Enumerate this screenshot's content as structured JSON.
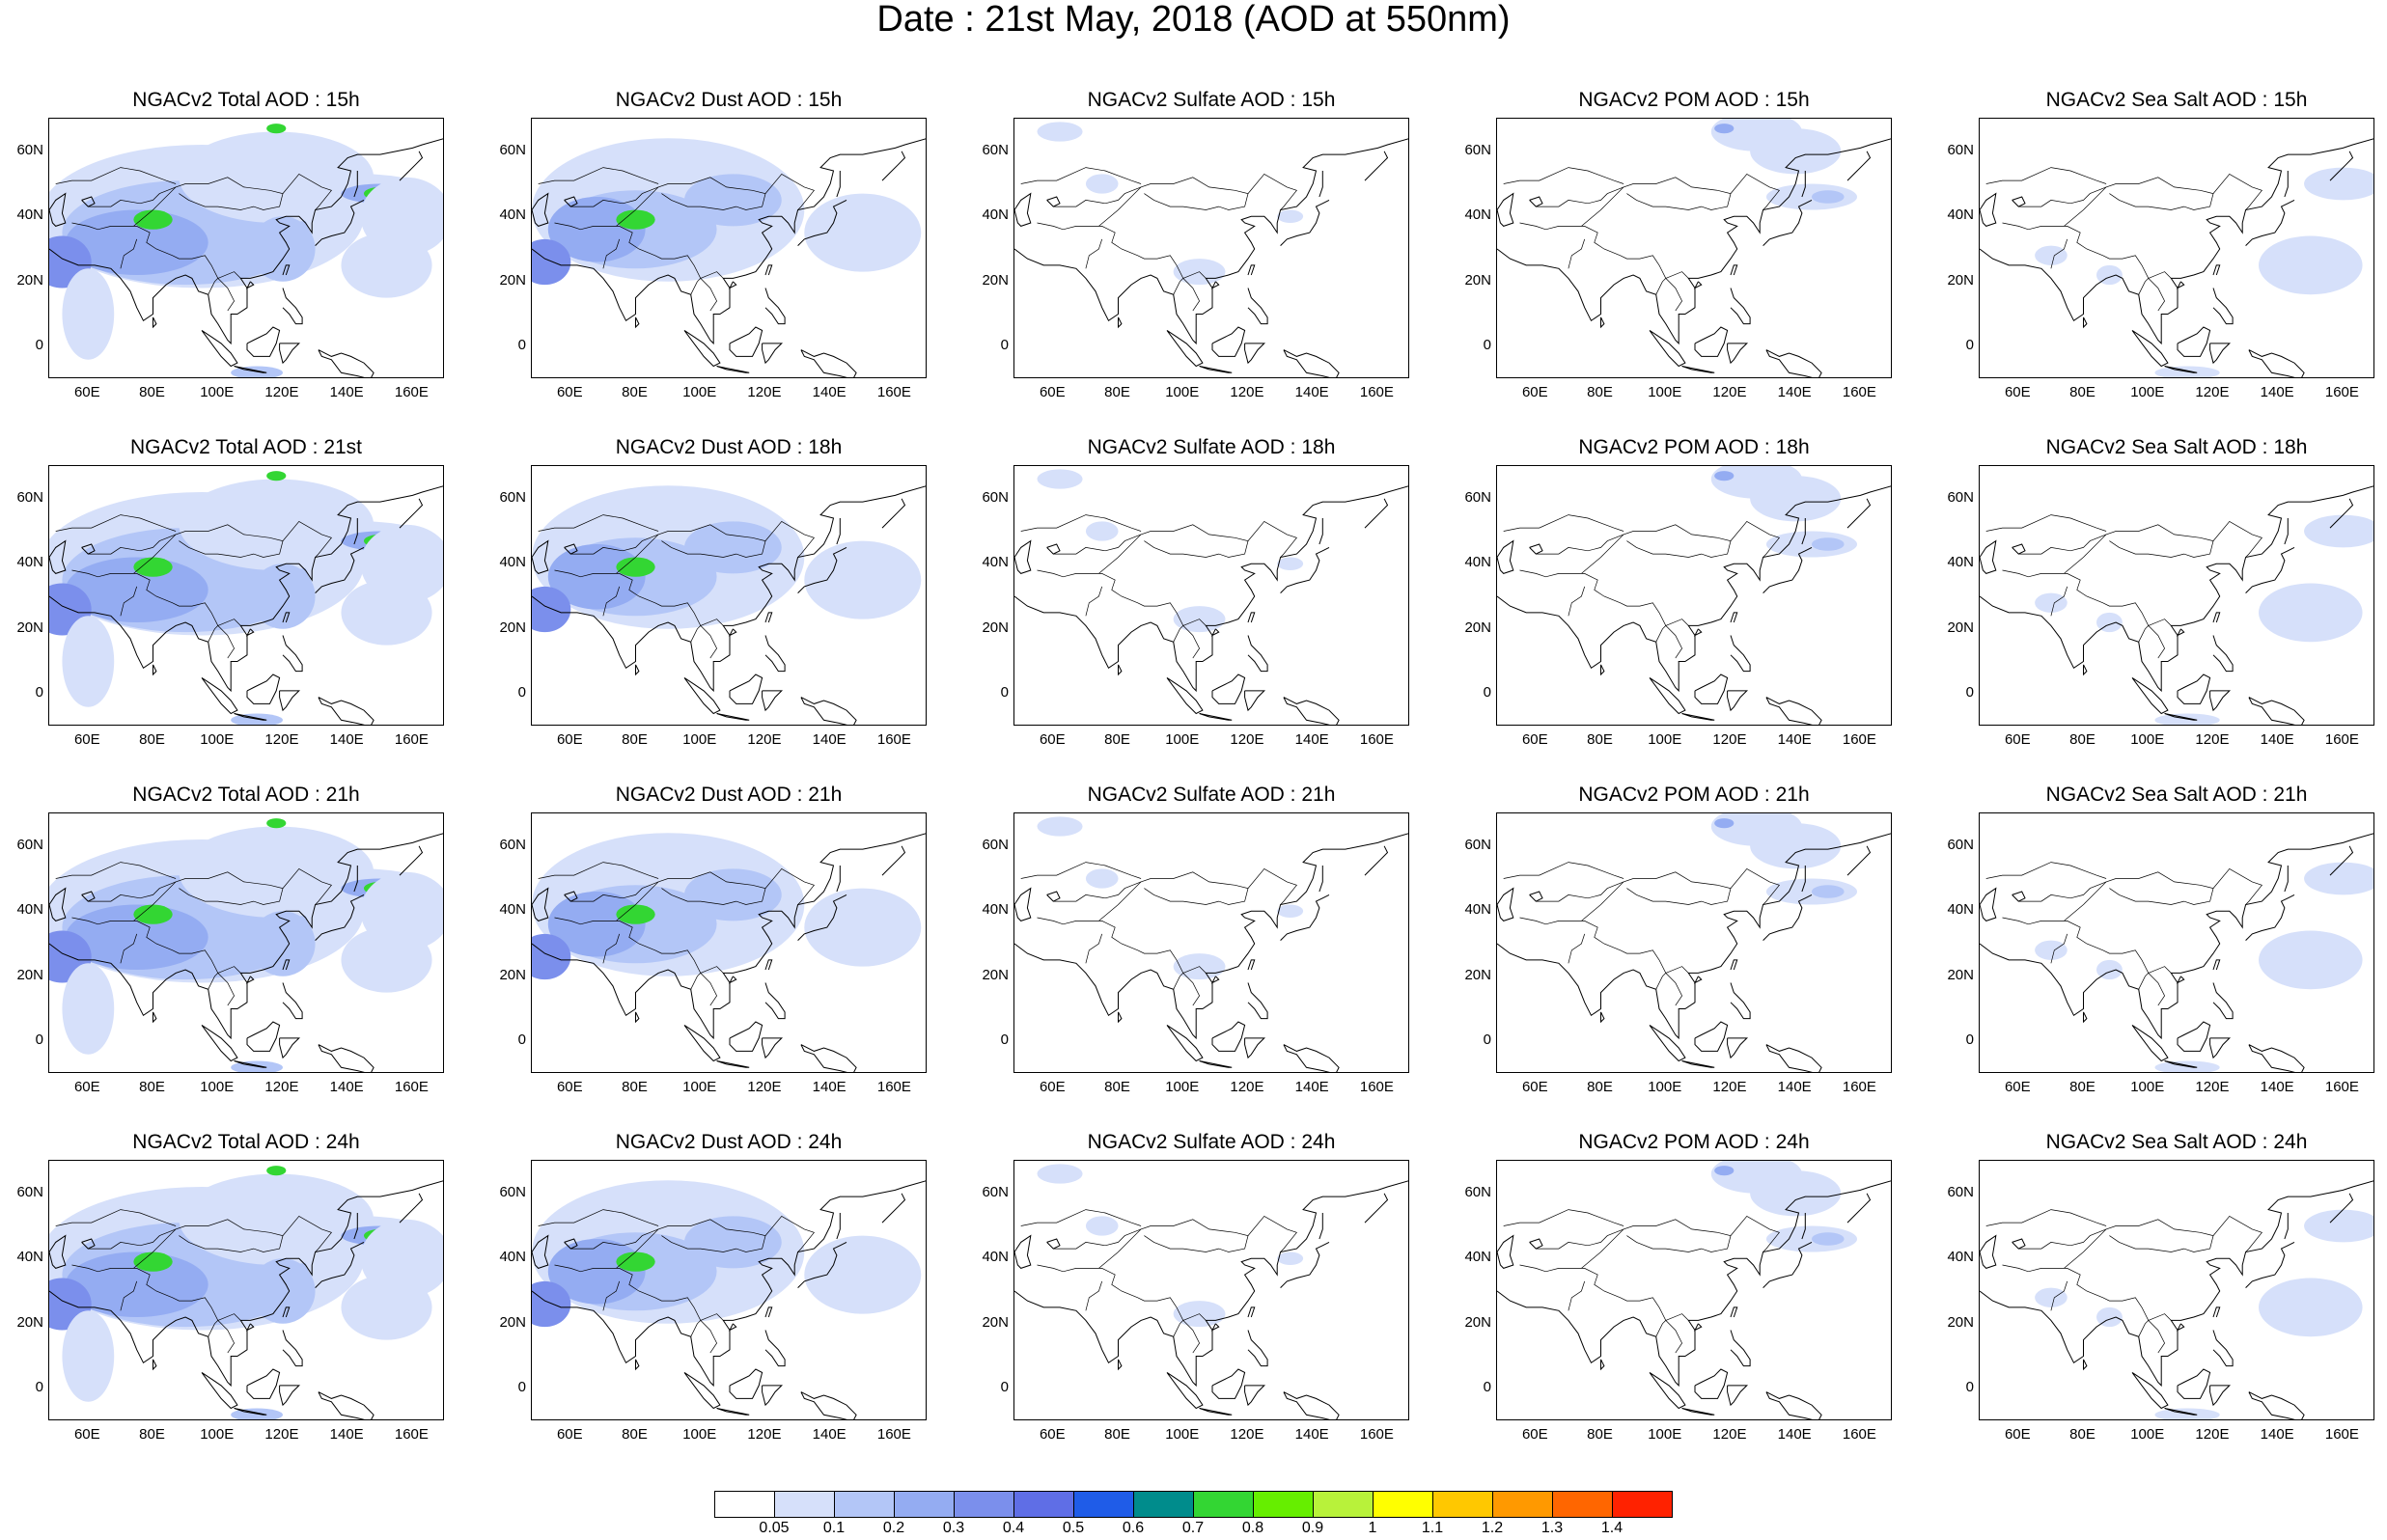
{
  "title": "Date : 21st May, 2018 (AOD at 550nm)",
  "axes": {
    "y_ticks": [
      "60N",
      "40N",
      "20N",
      "0"
    ],
    "x_ticks": [
      "60E",
      "80E",
      "100E",
      "120E",
      "140E",
      "160E"
    ]
  },
  "panels": [
    {
      "title": "NGACv2 Total AOD : 15h",
      "species": "total"
    },
    {
      "title": "NGACv2 Dust AOD : 15h",
      "species": "dust"
    },
    {
      "title": "NGACv2 Sulfate AOD : 15h",
      "species": "sulfate"
    },
    {
      "title": "NGACv2 POM AOD : 15h",
      "species": "pom"
    },
    {
      "title": "NGACv2 Sea Salt AOD : 15h",
      "species": "seasalt"
    },
    {
      "title": "NGACv2 Total AOD : 21st",
      "species": "total"
    },
    {
      "title": "NGACv2 Dust AOD : 18h",
      "species": "dust"
    },
    {
      "title": "NGACv2 Sulfate AOD : 18h",
      "species": "sulfate"
    },
    {
      "title": "NGACv2 POM AOD : 18h",
      "species": "pom"
    },
    {
      "title": "NGACv2 Sea Salt AOD : 18h",
      "species": "seasalt"
    },
    {
      "title": "NGACv2 Total AOD : 21h",
      "species": "total"
    },
    {
      "title": "NGACv2 Dust AOD : 21h",
      "species": "dust"
    },
    {
      "title": "NGACv2 Sulfate AOD : 21h",
      "species": "sulfate"
    },
    {
      "title": "NGACv2 POM AOD : 21h",
      "species": "pom"
    },
    {
      "title": "NGACv2 Sea Salt AOD : 21h",
      "species": "seasalt"
    },
    {
      "title": "NGACv2 Total AOD : 24h",
      "species": "total"
    },
    {
      "title": "NGACv2 Dust AOD : 24h",
      "species": "dust"
    },
    {
      "title": "NGACv2 Sulfate AOD : 24h",
      "species": "sulfate"
    },
    {
      "title": "NGACv2 POM AOD : 24h",
      "species": "pom"
    },
    {
      "title": "NGACv2 Sea Salt  AOD : 24h",
      "species": "seasalt"
    }
  ],
  "colorbar": {
    "labels": [
      "0.05",
      "0.1",
      "0.2",
      "0.3",
      "0.4",
      "0.5",
      "0.6",
      "0.7",
      "0.8",
      "0.9",
      "1",
      "1.1",
      "1.2",
      "1.3",
      "1.4"
    ],
    "colors": [
      "#ffffff",
      "#d6e0fa",
      "#b3c6f7",
      "#94acf2",
      "#7b8fec",
      "#5f6ee6",
      "#1f5ce8",
      "#008c8c",
      "#33d633",
      "#66ee00",
      "#b8f23a",
      "#ffff00",
      "#ffc800",
      "#ff9900",
      "#ff6600",
      "#ff2200"
    ]
  }
}
